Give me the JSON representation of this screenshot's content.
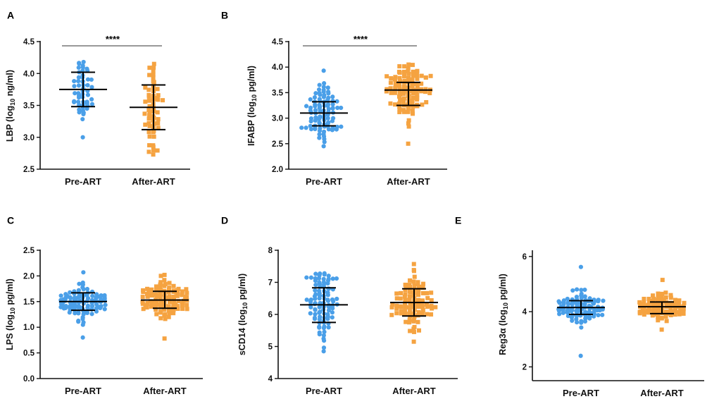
{
  "colors": {
    "pre": "#4a9fe8",
    "after": "#f5a341",
    "axis": "#111111"
  },
  "chart_data": [
    {
      "id": "A",
      "type": "scatter",
      "letter": "A",
      "ylabel_main": "LBP (log",
      "ylabel_sub": "10",
      "ylabel_tail": " ng/ml)",
      "ylim": [
        2.5,
        4.5
      ],
      "yticks": [
        {
          "v": 2.5,
          "label": "2.5"
        },
        {
          "v": 3.0,
          "label": "3.0"
        },
        {
          "v": 3.5,
          "label": "3.5"
        },
        {
          "v": 4.0,
          "label": "4.0"
        },
        {
          "v": 4.5,
          "label": "4.5"
        }
      ],
      "categories": [
        "Pre-ART",
        "After-ART"
      ],
      "series": [
        {
          "name": "Pre-ART",
          "marker": "circle",
          "n": 55,
          "mean": 3.75,
          "sd_low": 3.48,
          "sd_high": 4.02,
          "min": 3.0,
          "max": 4.18,
          "center": 3.75,
          "spread": 0.27,
          "seed": 11
        },
        {
          "name": "After-ART",
          "marker": "square",
          "n": 60,
          "mean": 3.47,
          "sd_low": 3.12,
          "sd_high": 3.82,
          "min": 2.73,
          "max": 4.15,
          "center": 3.47,
          "spread": 0.35,
          "seed": 23
        }
      ],
      "significance": "****"
    },
    {
      "id": "B",
      "type": "scatter",
      "letter": "B",
      "ylabel_main": "IFABP (log",
      "ylabel_sub": "10",
      "ylabel_tail": " pg/ml)",
      "ylim": [
        2.0,
        4.5
      ],
      "yticks": [
        {
          "v": 2.0,
          "label": "2.0"
        },
        {
          "v": 2.5,
          "label": "2.5"
        },
        {
          "v": 3.0,
          "label": "3.0"
        },
        {
          "v": 3.5,
          "label": "3.5"
        },
        {
          "v": 4.0,
          "label": "4.0"
        },
        {
          "v": 4.5,
          "label": "4.5"
        }
      ],
      "categories": [
        "Pre-ART",
        "After-ART"
      ],
      "series": [
        {
          "name": "Pre-ART",
          "marker": "circle",
          "n": 95,
          "mean": 3.1,
          "sd_low": 2.85,
          "sd_high": 3.32,
          "min": 2.45,
          "max": 3.93,
          "center": 3.1,
          "spread": 0.24,
          "seed": 37
        },
        {
          "name": "After-ART",
          "marker": "square",
          "n": 110,
          "mean": 3.55,
          "sd_low": 3.25,
          "sd_high": 3.7,
          "min": 2.5,
          "max": 4.05,
          "center": 3.55,
          "spread": 0.28,
          "seed": 41
        }
      ],
      "significance": "****"
    },
    {
      "id": "C",
      "type": "scatter",
      "letter": "C",
      "ylabel_main": "LPS (log",
      "ylabel_sub": "10",
      "ylabel_tail": " pg/ml)",
      "ylim": [
        0.0,
        2.5
      ],
      "yticks": [
        {
          "v": 0.0,
          "label": "0.0"
        },
        {
          "v": 0.5,
          "label": "0.5"
        },
        {
          "v": 1.0,
          "label": "1.0"
        },
        {
          "v": 1.5,
          "label": "1.5"
        },
        {
          "v": 2.0,
          "label": "2.0"
        },
        {
          "v": 2.5,
          "label": "2.5"
        }
      ],
      "categories": [
        "Pre-ART",
        "After-ART"
      ],
      "series": [
        {
          "name": "Pre-ART",
          "marker": "circle",
          "n": 120,
          "mean": 1.5,
          "sd_low": 1.33,
          "sd_high": 1.67,
          "min": 0.8,
          "max": 2.07,
          "center": 1.5,
          "spread": 0.17,
          "seed": 53
        },
        {
          "name": "After-ART",
          "marker": "square",
          "n": 115,
          "mean": 1.53,
          "sd_low": 1.37,
          "sd_high": 1.7,
          "min": 0.78,
          "max": 2.02,
          "center": 1.53,
          "spread": 0.17,
          "seed": 59
        }
      ],
      "significance": ""
    },
    {
      "id": "D",
      "type": "scatter",
      "letter": "D",
      "ylabel_main": "sCD14 (log",
      "ylabel_sub": "10",
      "ylabel_tail": " pg/ml)",
      "ylim": [
        4,
        8
      ],
      "yticks": [
        {
          "v": 4,
          "label": "4"
        },
        {
          "v": 5,
          "label": "5"
        },
        {
          "v": 6,
          "label": "6"
        },
        {
          "v": 7,
          "label": "7"
        },
        {
          "v": 8,
          "label": "8"
        }
      ],
      "categories": [
        "Pre-ART",
        "After-ART"
      ],
      "series": [
        {
          "name": "Pre-ART",
          "marker": "circle",
          "n": 100,
          "mean": 6.3,
          "sd_low": 5.75,
          "sd_high": 6.83,
          "min": 4.85,
          "max": 7.28,
          "center": 6.3,
          "spread": 0.55,
          "seed": 67
        },
        {
          "name": "After-ART",
          "marker": "square",
          "n": 100,
          "mean": 6.37,
          "sd_low": 5.95,
          "sd_high": 6.8,
          "min": 5.15,
          "max": 7.57,
          "center": 6.37,
          "spread": 0.43,
          "seed": 71
        }
      ],
      "significance": ""
    },
    {
      "id": "E",
      "type": "scatter",
      "letter": "E",
      "ylabel_main": "Reg3α (log",
      "ylabel_sub": "10",
      "ylabel_tail": " pg/ml)",
      "ylim": [
        1.5,
        6.2
      ],
      "yticks": [
        {
          "v": 2,
          "label": "2"
        },
        {
          "v": 4,
          "label": "4"
        },
        {
          "v": 6,
          "label": "6"
        }
      ],
      "categories": [
        "Pre-ART",
        "After-ART"
      ],
      "series": [
        {
          "name": "Pre-ART",
          "marker": "circle",
          "n": 120,
          "mean": 4.15,
          "sd_low": 3.9,
          "sd_high": 4.4,
          "min": 2.4,
          "max": 5.62,
          "center": 4.15,
          "spread": 0.26,
          "seed": 83
        },
        {
          "name": "After-ART",
          "marker": "square",
          "n": 115,
          "mean": 4.18,
          "sd_low": 3.93,
          "sd_high": 4.35,
          "min": 3.35,
          "max": 5.15,
          "center": 4.18,
          "spread": 0.24,
          "seed": 89
        }
      ],
      "significance": ""
    }
  ]
}
